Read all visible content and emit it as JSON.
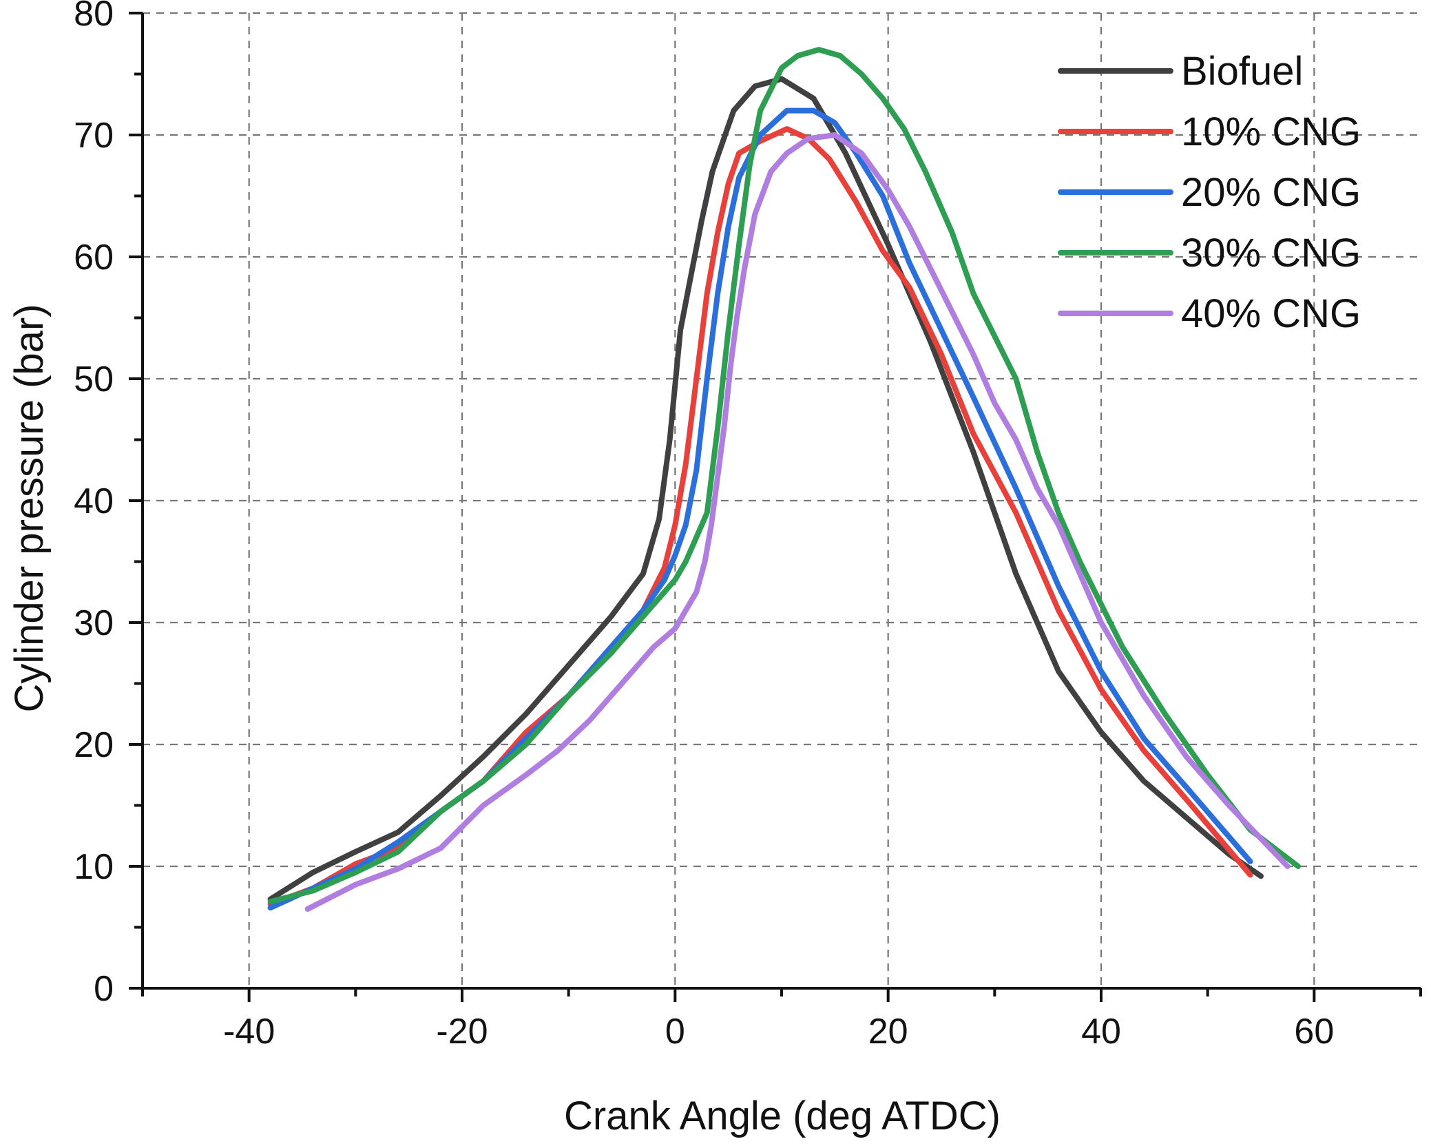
{
  "chart_data": {
    "type": "line",
    "title": "",
    "xlabel": "Crank Angle (deg ATDC)",
    "ylabel": "Cylinder pressure (bar)",
    "xlim": [
      -50,
      70
    ],
    "ylim": [
      0,
      80
    ],
    "xticks": [
      -40,
      -20,
      0,
      20,
      40,
      60
    ],
    "xtick_labels": [
      "-40",
      "-20",
      "0",
      "20",
      "40",
      "60"
    ],
    "yticks": [
      0,
      10,
      20,
      30,
      40,
      50,
      60,
      70,
      80
    ],
    "ytick_labels": [
      "0",
      "10",
      "20",
      "30",
      "40",
      "50",
      "60",
      "70",
      "80"
    ],
    "grid": true,
    "legend_position": "top-right",
    "series": [
      {
        "name": "Biofuel",
        "color": "#404040",
        "x": [
          -38,
          -34,
          -30,
          -26,
          -22,
          -18,
          -14,
          -10,
          -6,
          -3,
          -1.5,
          -0.5,
          0.5,
          1.5,
          2.5,
          3.5,
          4.5,
          5.5,
          7.5,
          10,
          13,
          16,
          20,
          24,
          28,
          32,
          36,
          40,
          44,
          48,
          52,
          55
        ],
        "y": [
          7.3,
          9.5,
          11.2,
          12.8,
          15.8,
          19,
          22.5,
          26.5,
          30.5,
          34,
          38.5,
          45,
          54,
          58.5,
          63,
          67,
          69.5,
          72,
          74,
          74.6,
          73,
          68.5,
          61,
          53,
          44,
          34,
          26,
          21,
          17,
          14,
          11,
          9.2
        ]
      },
      {
        "name": "10% CNG",
        "color": "#e8403a",
        "x": [
          -38,
          -34,
          -30,
          -26,
          -22,
          -18,
          -14,
          -10,
          -6,
          -3,
          -1,
          0,
          1,
          2,
          3,
          4,
          5,
          6,
          8,
          10.5,
          12.5,
          14.5,
          17,
          19.5,
          22,
          25,
          28,
          32,
          36,
          40,
          44,
          48,
          54
        ],
        "y": [
          6.9,
          8.2,
          10.2,
          11.5,
          14.5,
          17,
          21,
          24,
          28,
          31,
          34.5,
          38,
          43,
          50,
          57,
          62,
          66,
          68.5,
          69.5,
          70.5,
          69.7,
          68,
          64.5,
          60.5,
          57.5,
          52,
          45.5,
          39,
          31,
          24.5,
          19.5,
          15.5,
          9.3
        ]
      },
      {
        "name": "20% CNG",
        "color": "#2a6fdb",
        "x": [
          -38,
          -34,
          -30,
          -26,
          -22,
          -18,
          -14,
          -10,
          -6,
          -3,
          -1,
          0,
          1,
          2,
          3,
          4,
          5,
          6,
          8,
          10.5,
          13,
          15,
          17,
          19.5,
          22,
          25,
          28,
          32,
          36,
          40,
          44,
          48,
          54
        ],
        "y": [
          6.6,
          8.2,
          9.8,
          12,
          14.5,
          17,
          20.5,
          24,
          28,
          31,
          33.5,
          35.5,
          38,
          42.5,
          50,
          57,
          62.5,
          66.5,
          70,
          72,
          72,
          71,
          68.5,
          65,
          59.5,
          54,
          48.5,
          41,
          33,
          26,
          20.5,
          16.5,
          10.4
        ]
      },
      {
        "name": "30% CNG",
        "color": "#2e9e52",
        "x": [
          -38,
          -34,
          -30,
          -26,
          -22,
          -18,
          -14,
          -10,
          -6,
          -3,
          0,
          1,
          2,
          3,
          4,
          5,
          6,
          7,
          8,
          10,
          11.5,
          13.5,
          15.5,
          17.5,
          19.5,
          21.5,
          23.5,
          26,
          28,
          30,
          32,
          34,
          36,
          38,
          42,
          46,
          50,
          54,
          58.5
        ],
        "y": [
          7.1,
          8,
          9.5,
          11.2,
          14.5,
          17,
          20,
          24,
          27.5,
          30.5,
          33.5,
          35,
          37,
          39,
          46,
          54,
          61,
          67.5,
          72,
          75.5,
          76.5,
          77,
          76.5,
          75,
          73,
          70.5,
          67,
          62,
          57,
          53.5,
          50,
          44,
          39,
          35,
          28,
          22.5,
          17.5,
          13,
          10
        ]
      },
      {
        "name": "40% CNG",
        "color": "#b07ee0",
        "x": [
          -34.5,
          -30,
          -26,
          -22,
          -18,
          -14,
          -11,
          -8,
          -5,
          -2,
          0,
          1,
          2,
          2.8,
          3.4,
          4,
          4.6,
          5.2,
          5.8,
          6.5,
          7.5,
          9,
          10.5,
          12.5,
          15,
          17.5,
          20,
          22,
          24,
          26,
          28,
          30,
          32,
          34,
          36,
          38,
          40,
          44,
          48,
          52,
          57.5
        ],
        "y": [
          6.5,
          8.5,
          9.8,
          11.5,
          15,
          17.5,
          19.5,
          22,
          25,
          28,
          29.5,
          31,
          32.5,
          35,
          38,
          42,
          46,
          51,
          55,
          59,
          63.5,
          67,
          68.5,
          69.7,
          70,
          68.5,
          65.5,
          62.5,
          59,
          55.5,
          52,
          48,
          45,
          41,
          38,
          34,
          30,
          24,
          19,
          15,
          10
        ]
      }
    ]
  }
}
